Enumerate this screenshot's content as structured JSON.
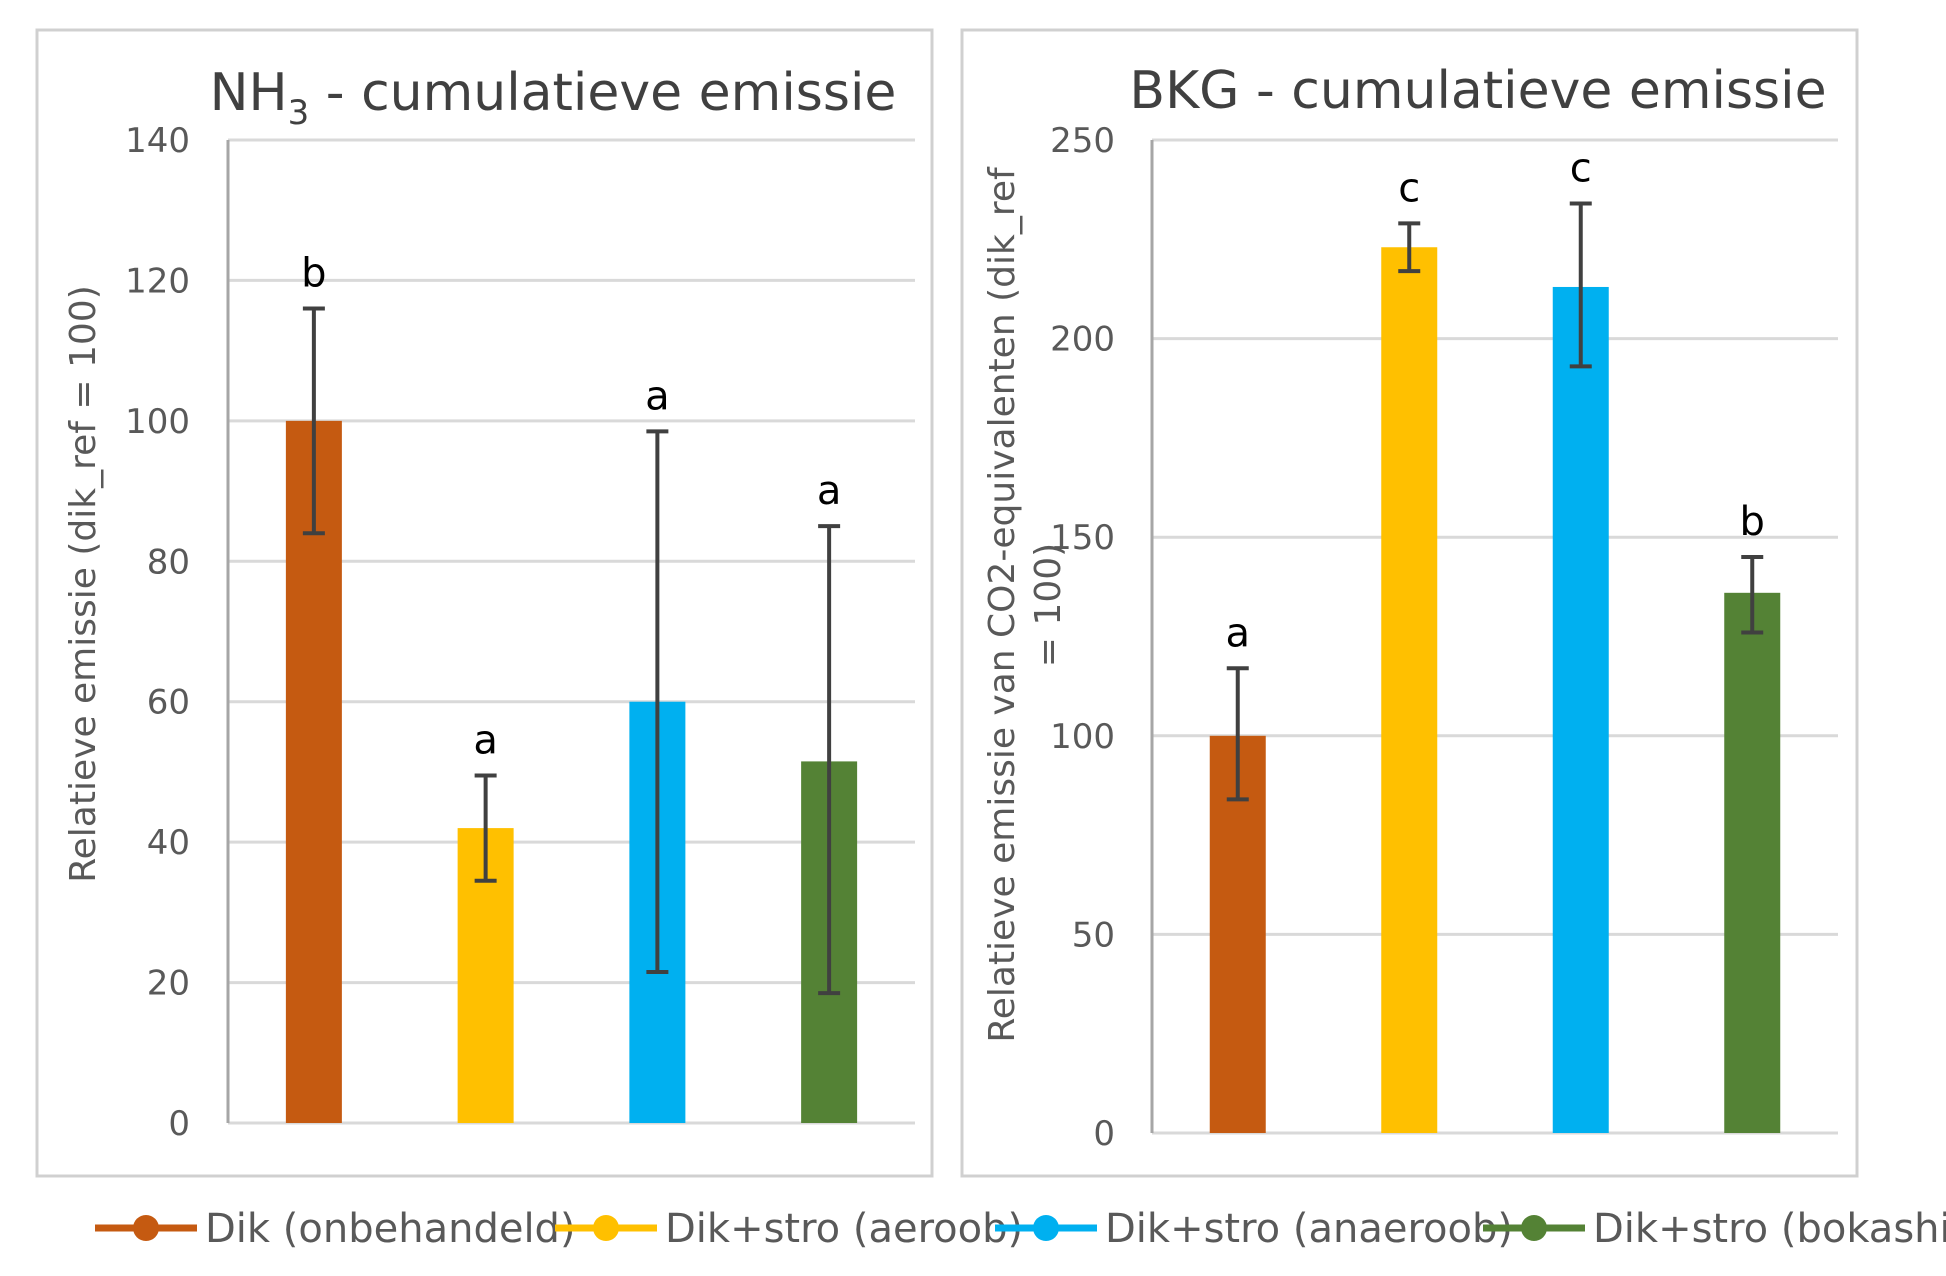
{
  "legend": [
    {
      "label": "Dik (onbehandeld)",
      "color": "#C55A11"
    },
    {
      "label": "Dik+stro (aeroob)",
      "color": "#FFC000"
    },
    {
      "label": "Dik+stro (anaeroob)",
      "color": "#00B0F0"
    },
    {
      "label": "Dik+stro (bokashi)",
      "color": "#548235"
    }
  ],
  "chart_data": [
    {
      "type": "bar",
      "title": "NH",
      "title_subscript": "3",
      "title_suffix": " - cumulatieve emissie",
      "ylabel": "Relatieve emissie (dik_ref = 100)",
      "ylim": [
        0,
        140
      ],
      "yticks": [
        0,
        20,
        40,
        60,
        80,
        100,
        120,
        140
      ],
      "grid": true,
      "categories": [
        "Dik (onbehandeld)",
        "Dik+stro (aeroob)",
        "Dik+stro (anaeroob)",
        "Dik+stro (bokashi)"
      ],
      "values": [
        100,
        42,
        60,
        51.5
      ],
      "error_low": [
        84,
        34.5,
        21.5,
        18.5
      ],
      "error_high": [
        116,
        49.5,
        98.5,
        85
      ],
      "significance": [
        "b",
        "a",
        "a",
        "a"
      ],
      "colors": [
        "#C55A11",
        "#FFC000",
        "#00B0F0",
        "#548235"
      ]
    },
    {
      "type": "bar",
      "title": "BKG - cumulatieve emissie",
      "ylabel": "Relatieve emissie van CO2-equivalenten (dik_ref = 100)",
      "ylim": [
        0,
        250
      ],
      "yticks": [
        0,
        50,
        100,
        150,
        200,
        250
      ],
      "grid": true,
      "categories": [
        "Dik (onbehandeld)",
        "Dik+stro (aeroob)",
        "Dik+stro (anaeroob)",
        "Dik+stro (bokashi)"
      ],
      "values": [
        100,
        223,
        213,
        136
      ],
      "error_low": [
        84,
        217,
        193,
        126
      ],
      "error_high": [
        117,
        229,
        234,
        145
      ],
      "significance": [
        "a",
        "c",
        "c",
        "b"
      ],
      "colors": [
        "#C55A11",
        "#FFC000",
        "#00B0F0",
        "#548235"
      ]
    }
  ]
}
